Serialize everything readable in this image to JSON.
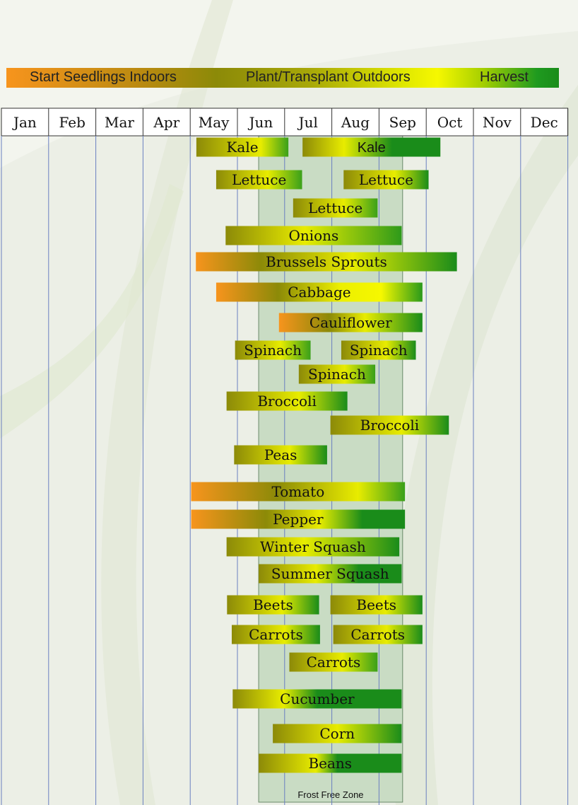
{
  "legend": {
    "start_indoors": "Start Seedlings Indoors",
    "plant_outdoors": "Plant/Transplant Outdoors",
    "harvest": "Harvest"
  },
  "frost_free_zone_label": "Frost Free Zone",
  "colors": {
    "start_indoors": "#f7941d",
    "plant_outdoors": "#8c8a08",
    "harvest_ripening": "#f6f800",
    "harvest": "#1a8c1a",
    "frost_free_zone": "#c9dcc4",
    "month_gridline": "#6a7fc0"
  },
  "chart_data": {
    "type": "gantt",
    "title": "",
    "months": [
      "Jan",
      "Feb",
      "Mar",
      "Apr",
      "May",
      "Jun",
      "Jul",
      "Aug",
      "Sep",
      "Oct",
      "Nov",
      "Dec"
    ],
    "frost_free_zone": {
      "start": 6.45,
      "end": 9.5
    },
    "tasks": [
      {
        "label": "Kale",
        "start": 5.13,
        "end": 7.08,
        "font": "serif",
        "stops": [
          [
            0,
            "#8c8a08"
          ],
          [
            0.7,
            "#e8ec00"
          ],
          [
            1,
            "#3aa01a"
          ]
        ]
      },
      {
        "label": "Kale",
        "start": 7.38,
        "end": 10.3,
        "font": "sans",
        "stops": [
          [
            0,
            "#8c8a08"
          ],
          [
            0.3,
            "#e8ec00"
          ],
          [
            0.65,
            "#1a8c1a"
          ],
          [
            1,
            "#1a8c1a"
          ]
        ]
      },
      {
        "label": "Lettuce",
        "start": 5.55,
        "end": 7.37,
        "stops": [
          [
            0,
            "#8c8a08"
          ],
          [
            0.6,
            "#e8ec00"
          ],
          [
            1,
            "#3aa01a"
          ]
        ]
      },
      {
        "label": "Lettuce",
        "start": 8.25,
        "end": 10.05,
        "stops": [
          [
            0,
            "#8c8a08"
          ],
          [
            0.6,
            "#e8ec00"
          ],
          [
            1,
            "#1a8c1a"
          ]
        ]
      },
      {
        "label": "Lettuce",
        "start": 7.18,
        "end": 8.97,
        "stops": [
          [
            0,
            "#8c8a08"
          ],
          [
            0.6,
            "#e8ec00"
          ],
          [
            1,
            "#3aa01a"
          ]
        ]
      },
      {
        "label": "Onions",
        "start": 5.75,
        "end": 9.48,
        "stops": [
          [
            0,
            "#8c8a08"
          ],
          [
            0.45,
            "#e8ec00"
          ],
          [
            1,
            "#2e9a1a"
          ]
        ]
      },
      {
        "label": "Brussels Sprouts",
        "start": 5.12,
        "end": 10.65,
        "stops": [
          [
            0,
            "#f7941d"
          ],
          [
            0.25,
            "#8c8a08"
          ],
          [
            0.6,
            "#e8ec00"
          ],
          [
            1,
            "#1a8c1a"
          ]
        ]
      },
      {
        "label": "Cabbage",
        "start": 5.55,
        "end": 9.92,
        "stops": [
          [
            0,
            "#f7941d"
          ],
          [
            0.3,
            "#8c8a08"
          ],
          [
            0.6,
            "#ecef00"
          ],
          [
            0.8,
            "#f6f800"
          ],
          [
            1,
            "#2a9a1a"
          ]
        ]
      },
      {
        "label": "Cauliflower",
        "start": 6.88,
        "end": 9.92,
        "stops": [
          [
            0,
            "#f7941d"
          ],
          [
            0.35,
            "#8c8a08"
          ],
          [
            0.6,
            "#e8ec00"
          ],
          [
            1,
            "#1a8c1a"
          ]
        ]
      },
      {
        "label": "Spinach",
        "start": 5.95,
        "end": 7.55,
        "stops": [
          [
            0,
            "#8c8a08"
          ],
          [
            0.6,
            "#e8ec00"
          ],
          [
            1,
            "#3aa01a"
          ]
        ]
      },
      {
        "label": "Spinach",
        "start": 8.2,
        "end": 9.78,
        "stops": [
          [
            0,
            "#8c8a08"
          ],
          [
            0.6,
            "#e8ec00"
          ],
          [
            1,
            "#1a8c1a"
          ]
        ]
      },
      {
        "label": "Spinach",
        "start": 7.3,
        "end": 8.92,
        "stops": [
          [
            0,
            "#8c8a08"
          ],
          [
            0.6,
            "#e8ec00"
          ],
          [
            1,
            "#3aa01a"
          ]
        ]
      },
      {
        "label": "Broccoli",
        "start": 5.77,
        "end": 8.33,
        "stops": [
          [
            0,
            "#8c8a08"
          ],
          [
            0.6,
            "#e8ec00"
          ],
          [
            1,
            "#1a8c1a"
          ]
        ]
      },
      {
        "label": "Broccoli",
        "start": 7.97,
        "end": 10.48,
        "stops": [
          [
            0,
            "#8c8a08"
          ],
          [
            0.6,
            "#e8ec00"
          ],
          [
            1,
            "#1a8c1a"
          ]
        ]
      },
      {
        "label": "Peas",
        "start": 5.93,
        "end": 7.9,
        "stops": [
          [
            0,
            "#8c8a08"
          ],
          [
            0.6,
            "#e8ec00"
          ],
          [
            1,
            "#1a8c1a"
          ]
        ]
      },
      {
        "label": "Tomato",
        "start": 5.02,
        "end": 9.55,
        "stops": [
          [
            0,
            "#f7941d"
          ],
          [
            0.4,
            "#8c8a08"
          ],
          [
            0.78,
            "#e8ec00"
          ],
          [
            1,
            "#3aa01a"
          ]
        ]
      },
      {
        "label": "Pepper",
        "start": 5.02,
        "end": 9.55,
        "stops": [
          [
            0,
            "#f7941d"
          ],
          [
            0.35,
            "#8c8a08"
          ],
          [
            0.6,
            "#e8ec00"
          ],
          [
            0.8,
            "#1a8c1a"
          ],
          [
            1,
            "#1a8c1a"
          ]
        ]
      },
      {
        "label": "Winter Squash",
        "start": 5.77,
        "end": 9.43,
        "stops": [
          [
            0,
            "#8c8a08"
          ],
          [
            0.45,
            "#e8ec00"
          ],
          [
            1,
            "#1a8c1a"
          ]
        ]
      },
      {
        "label": "Summer Squash",
        "start": 6.45,
        "end": 9.48,
        "stops": [
          [
            0,
            "#8c8a08"
          ],
          [
            0.4,
            "#e8ec00"
          ],
          [
            0.7,
            "#1a8c1a"
          ],
          [
            1,
            "#1a8c1a"
          ]
        ]
      },
      {
        "label": "Beets",
        "start": 5.78,
        "end": 7.73,
        "stops": [
          [
            0,
            "#8c8a08"
          ],
          [
            0.6,
            "#e8ec00"
          ],
          [
            1,
            "#1a8c1a"
          ]
        ]
      },
      {
        "label": "Beets",
        "start": 7.97,
        "end": 9.92,
        "stops": [
          [
            0,
            "#8c8a08"
          ],
          [
            0.6,
            "#e8ec00"
          ],
          [
            1,
            "#1a8c1a"
          ]
        ]
      },
      {
        "label": "Carrots",
        "start": 5.88,
        "end": 7.75,
        "stops": [
          [
            0,
            "#8c8a08"
          ],
          [
            0.6,
            "#e8ec00"
          ],
          [
            1,
            "#1a8c1a"
          ]
        ]
      },
      {
        "label": "Carrots",
        "start": 8.03,
        "end": 9.92,
        "stops": [
          [
            0,
            "#8c8a08"
          ],
          [
            0.6,
            "#e8ec00"
          ],
          [
            1,
            "#1a8c1a"
          ]
        ]
      },
      {
        "label": "Carrots",
        "start": 7.1,
        "end": 8.97,
        "stops": [
          [
            0,
            "#8c8a08"
          ],
          [
            0.6,
            "#e8ec00"
          ],
          [
            1,
            "#3aa01a"
          ]
        ]
      },
      {
        "label": "Cucumber",
        "start": 5.9,
        "end": 9.48,
        "stops": [
          [
            0,
            "#8c8a08"
          ],
          [
            0.3,
            "#e8ec00"
          ],
          [
            0.5,
            "#1a8c1a"
          ],
          [
            1,
            "#1a8c1a"
          ]
        ]
      },
      {
        "label": "Corn",
        "start": 6.75,
        "end": 9.48,
        "stops": [
          [
            0,
            "#8c8a08"
          ],
          [
            0.5,
            "#e8ec00"
          ],
          [
            1,
            "#1a8c1a"
          ]
        ]
      },
      {
        "label": "Beans",
        "start": 6.45,
        "end": 9.48,
        "stops": [
          [
            0,
            "#8c8a08"
          ],
          [
            0.4,
            "#e8ec00"
          ],
          [
            0.55,
            "#1a8c1a"
          ],
          [
            1,
            "#1a8c1a"
          ]
        ]
      }
    ]
  }
}
